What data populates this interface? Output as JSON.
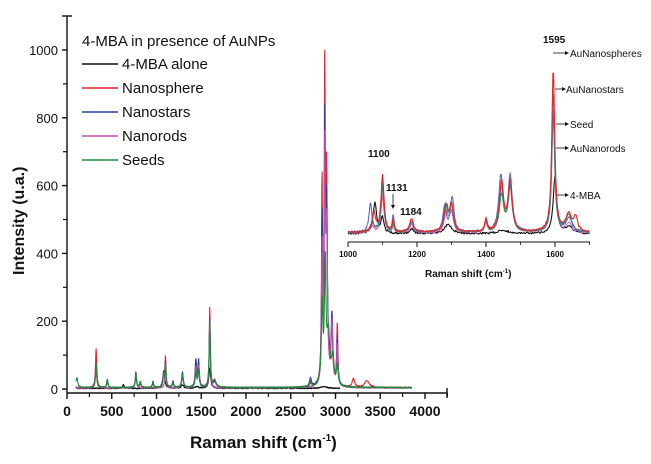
{
  "chart_data": [
    {
      "type": "line",
      "title": "",
      "xlabel": "Raman shift (cm-1)",
      "xlabel_main": "Raman shift (cm",
      "xlabel_sup": "-1",
      "xlabel_close": ")",
      "ylabel": "Intensity (u.a.)",
      "xlim": [
        0,
        4250
      ],
      "ylim": [
        -20,
        1100
      ],
      "xticks": [
        0,
        500,
        1000,
        1500,
        2000,
        2500,
        3000,
        3500,
        4000
      ],
      "yticks": [
        0,
        200,
        400,
        600,
        800,
        1000
      ],
      "grid": false,
      "legend_title": "4-MBA in presence of AuNPs",
      "legend_position": "upper-left",
      "series": [
        {
          "name": "4-MBA alone",
          "color": "#111111",
          "peaks": [
            [
              630,
              12,
              10
            ],
            [
              1080,
              45,
              14
            ],
            [
              1290,
              10,
              15
            ],
            [
              1450,
              5,
              20
            ],
            [
              1595,
              60,
              12
            ],
            [
              2870,
              5,
              40
            ]
          ],
          "baseline": 2,
          "x_range": [
            100,
            3050
          ]
        },
        {
          "name": "Nanosphere",
          "color": "#e0262a",
          "peaks": [
            [
              325,
              115,
              8
            ],
            [
              450,
              20,
              8
            ],
            [
              770,
              40,
              8
            ],
            [
              820,
              12,
              8
            ],
            [
              960,
              15,
              8
            ],
            [
              1080,
              40,
              8
            ],
            [
              1100,
              90,
              7
            ],
            [
              1184,
              18,
              8
            ],
            [
              1290,
              40,
              10
            ],
            [
              1440,
              70,
              9
            ],
            [
              1470,
              70,
              9
            ],
            [
              1595,
              237,
              7
            ],
            [
              1650,
              20,
              20
            ],
            [
              2720,
              10,
              12
            ],
            [
              2850,
              585,
              7
            ],
            [
              2880,
              930,
              6
            ],
            [
              2900,
              600,
              10
            ],
            [
              2960,
              180,
              10
            ],
            [
              3020,
              180,
              8
            ],
            [
              3200,
              25,
              15
            ],
            [
              3350,
              20,
              30
            ]
          ],
          "baseline": 4,
          "x_range": [
            100,
            3850
          ]
        },
        {
          "name": "Nanostars",
          "color": "#2b3d98",
          "peaks": [
            [
              325,
              70,
              8
            ],
            [
              450,
              25,
              8
            ],
            [
              770,
              45,
              8
            ],
            [
              820,
              18,
              8
            ],
            [
              960,
              18,
              8
            ],
            [
              1080,
              40,
              8
            ],
            [
              1100,
              75,
              7
            ],
            [
              1184,
              18,
              8
            ],
            [
              1290,
              45,
              10
            ],
            [
              1440,
              80,
              9
            ],
            [
              1470,
              78,
              9
            ],
            [
              1595,
              205,
              7
            ],
            [
              1650,
              15,
              20
            ],
            [
              2720,
              25,
              12
            ],
            [
              2850,
              480,
              7
            ],
            [
              2880,
              680,
              6
            ],
            [
              2900,
              520,
              12
            ],
            [
              2960,
              200,
              12
            ],
            [
              3020,
              140,
              8
            ]
          ],
          "baseline": 4,
          "x_range": [
            100,
            3850
          ]
        },
        {
          "name": "Nanorods",
          "color": "#c04fb0",
          "peaks": [
            [
              325,
              65,
              8
            ],
            [
              770,
              38,
              8
            ],
            [
              1100,
              70,
              7
            ],
            [
              1290,
              38,
              10
            ],
            [
              1440,
              60,
              9
            ],
            [
              1470,
              60,
              9
            ],
            [
              1595,
              190,
              7
            ],
            [
              2850,
              400,
              7
            ],
            [
              2880,
              620,
              6
            ],
            [
              2900,
              460,
              12
            ],
            [
              2960,
              180,
              12
            ],
            [
              3020,
              120,
              8
            ]
          ],
          "baseline": 3,
          "x_range": [
            100,
            3850
          ]
        },
        {
          "name": "Seeds",
          "color": "#1f8a3a",
          "peaks": [
            [
              110,
              30,
              12
            ],
            [
              325,
              70,
              8
            ],
            [
              450,
              22,
              8
            ],
            [
              770,
              40,
              8
            ],
            [
              820,
              15,
              8
            ],
            [
              960,
              15,
              8
            ],
            [
              1080,
              35,
              8
            ],
            [
              1100,
              65,
              7
            ],
            [
              1184,
              15,
              8
            ],
            [
              1290,
              40,
              10
            ],
            [
              1440,
              45,
              9
            ],
            [
              1470,
              50,
              9
            ],
            [
              1595,
              195,
              7
            ],
            [
              1650,
              20,
              20
            ],
            [
              2720,
              15,
              12
            ],
            [
              2850,
              230,
              10
            ],
            [
              2885,
              350,
              10
            ],
            [
              2920,
              150,
              20
            ],
            [
              2970,
              80,
              15
            ],
            [
              3020,
              60,
              10
            ]
          ],
          "baseline": 4,
          "x_range": [
            100,
            3850
          ]
        }
      ]
    },
    {
      "type": "line",
      "title": "inset",
      "xlabel": "Raman shift (cm-1)",
      "xlabel_main": "Raman shift (cm",
      "xlabel_sup": "-1",
      "xlabel_close": ")",
      "xlim": [
        1000,
        1700
      ],
      "xticks": [
        1000,
        1200,
        1400,
        1600
      ],
      "annotations": [
        {
          "text": "1595",
          "x": 1595
        },
        {
          "text": "1100",
          "x": 1100
        },
        {
          "text": "1131",
          "x": 1131
        },
        {
          "text": "1184",
          "x": 1184
        }
      ],
      "peak_labels": [
        "AuNanospheres",
        "AuNanostars",
        "Seed",
        "AuNanorods",
        "4-MBA"
      ],
      "series": [
        {
          "name": "AuNanospheres",
          "color": "#e0262a",
          "peaks": [
            [
              1075,
              30,
              6
            ],
            [
              1100,
              90,
              5
            ],
            [
              1131,
              20,
              3
            ],
            [
              1184,
              22,
              6
            ],
            [
              1285,
              40,
              7
            ],
            [
              1300,
              42,
              6
            ],
            [
              1445,
              78,
              7
            ],
            [
              1470,
              78,
              7
            ],
            [
              1400,
              20,
              4
            ],
            [
              1595,
              260,
              5
            ],
            [
              1640,
              28,
              10
            ],
            [
              1660,
              22,
              6
            ]
          ],
          "baseline": 4
        },
        {
          "name": "AuNanostars",
          "color": "#5a6bc0",
          "peaks": [
            [
              1065,
              45,
              5
            ],
            [
              1100,
              80,
              5
            ],
            [
              1131,
              27,
              3
            ],
            [
              1184,
              18,
              6
            ],
            [
              1280,
              40,
              6
            ],
            [
              1302,
              55,
              6
            ],
            [
              1400,
              20,
              4
            ],
            [
              1443,
              88,
              7
            ],
            [
              1470,
              88,
              7
            ],
            [
              1595,
              225,
              5
            ],
            [
              1640,
              22,
              10
            ]
          ],
          "baseline": 4
        },
        {
          "name": "Seed",
          "color": "#2e9a4a",
          "peaks": [
            [
              1070,
              15,
              6
            ],
            [
              1100,
              70,
              5
            ],
            [
              1131,
              15,
              3
            ],
            [
              1184,
              18,
              6
            ],
            [
              1283,
              42,
              7
            ],
            [
              1300,
              40,
              6
            ],
            [
              1400,
              18,
              4
            ],
            [
              1445,
              58,
              7
            ],
            [
              1470,
              72,
              7
            ],
            [
              1595,
              190,
              5
            ],
            [
              1640,
              28,
              10
            ]
          ],
          "baseline": 4
        },
        {
          "name": "AuNanorods",
          "color": "#c86cc0",
          "peaks": [
            [
              1070,
              10,
              6
            ],
            [
              1100,
              60,
              5
            ],
            [
              1131,
              12,
              3
            ],
            [
              1184,
              15,
              6
            ],
            [
              1285,
              32,
              7
            ],
            [
              1300,
              30,
              6
            ],
            [
              1400,
              15,
              4
            ],
            [
              1445,
              70,
              7
            ],
            [
              1470,
              70,
              7
            ],
            [
              1595,
              200,
              5
            ],
            [
              1640,
              15,
              10
            ]
          ],
          "baseline": 3
        },
        {
          "name": "4-MBA",
          "color": "#111111",
          "peaks": [
            [
              1078,
              48,
              6
            ],
            [
              1100,
              25,
              5
            ],
            [
              1184,
              8,
              6
            ],
            [
              1290,
              15,
              12
            ],
            [
              1450,
              5,
              20
            ],
            [
              1600,
              90,
              6
            ],
            [
              1640,
              10,
              15
            ]
          ],
          "baseline": 2
        }
      ]
    }
  ],
  "main": {
    "ylabel": "Intensity (u.a.)",
    "legend_title": "4-MBA in presence of AuNPs",
    "legend": [
      "4-MBA alone",
      "Nanosphere",
      "Nanostars",
      "Nanorods",
      "Seeds"
    ]
  },
  "inset": {
    "label_1595": "1595",
    "label_1100": "1100",
    "label_1131": "1131",
    "label_1184": "1184",
    "peak_labels": [
      "AuNanospheres",
      "AuNanostars",
      "Seed",
      "AuNanorods",
      "4-MBA"
    ]
  }
}
